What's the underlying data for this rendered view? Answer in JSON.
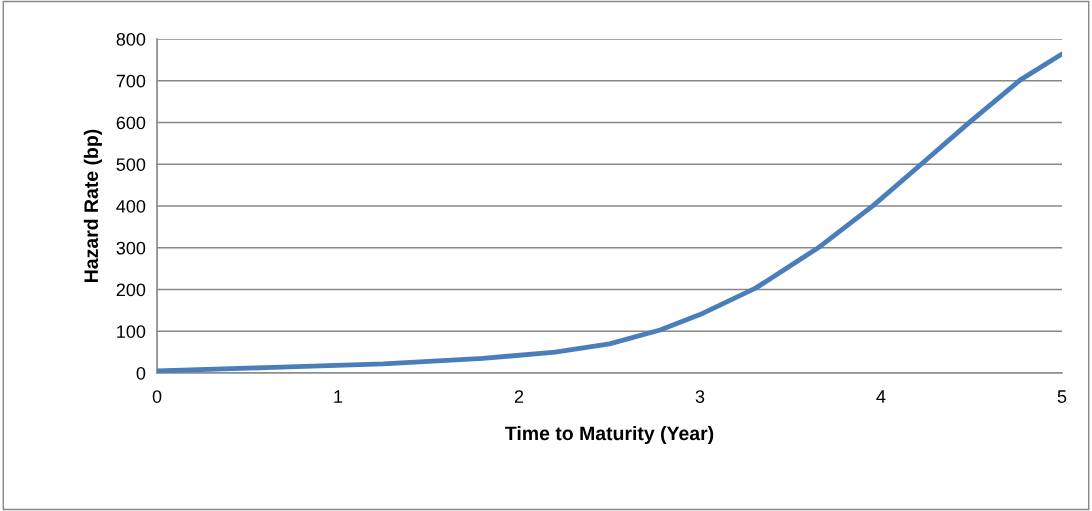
{
  "chart_data": {
    "type": "line",
    "xlabel": "Time to Maturity (Year)",
    "ylabel": "Hazard Rate (bp)",
    "x": [
      0,
      0.6,
      1.25,
      1.8,
      2.2,
      2.5,
      2.78,
      3.0,
      3.31,
      3.66,
      3.96,
      4.23,
      4.49,
      4.77,
      5
    ],
    "series": [
      {
        "color": "#4a7ebb",
        "values": [
          5,
          13,
          22,
          35,
          50,
          70,
          103,
          140,
          204,
          302,
          402,
          503,
          601,
          702,
          764
        ]
      }
    ],
    "xlim": [
      0,
      5
    ],
    "xticks": [
      0,
      1,
      2,
      3,
      4,
      5
    ],
    "ylim": [
      0,
      800
    ],
    "yticks": [
      0,
      100,
      200,
      300,
      400,
      500,
      600,
      700,
      800
    ],
    "grid": "y",
    "marker": "none",
    "line_style": "solid",
    "legend": false
  }
}
